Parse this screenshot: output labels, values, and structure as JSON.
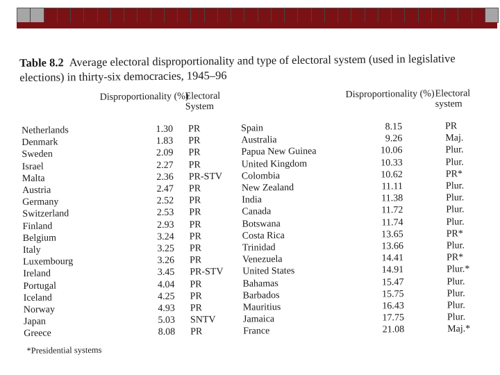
{
  "caption": {
    "table_number": "Table 8.2",
    "text": "Average electoral disproportionality and type of electoral system (used in legislative elections) in thirty-six democracies, 1945–96"
  },
  "headers": {
    "left_disproportionality": "Disproportionality (%)",
    "left_system": "Electoral System",
    "right_disproportionality": "Disproportionality (%)",
    "right_system": "Electoral system"
  },
  "rows": [
    {
      "c1": "Netherlands",
      "v1": "1.30",
      "s1": "PR",
      "c2": "Spain",
      "v2": "8.15",
      "s2": "PR"
    },
    {
      "c1": "Denmark",
      "v1": "1.83",
      "s1": "PR",
      "c2": "Australia",
      "v2": "9.26",
      "s2": "Maj."
    },
    {
      "c1": "Sweden",
      "v1": "2.09",
      "s1": "PR",
      "c2": "Papua New Guinea",
      "v2": "10.06",
      "s2": "Plur."
    },
    {
      "c1": "Israel",
      "v1": "2.27",
      "s1": "PR",
      "c2": "United Kingdom",
      "v2": "10.33",
      "s2": "Plur."
    },
    {
      "c1": "Malta",
      "v1": "2.36",
      "s1": "PR-STV",
      "c2": "Colombia",
      "v2": "10.62",
      "s2": "PR*"
    },
    {
      "c1": "Austria",
      "v1": "2.47",
      "s1": "PR",
      "c2": "New Zealand",
      "v2": "11.11",
      "s2": "Plur."
    },
    {
      "c1": "Germany",
      "v1": "2.52",
      "s1": "PR",
      "c2": "India",
      "v2": "11.38",
      "s2": "Plur."
    },
    {
      "c1": "Switzerland",
      "v1": "2.53",
      "s1": "PR",
      "c2": "Canada",
      "v2": "11.72",
      "s2": "Plur."
    },
    {
      "c1": "Finland",
      "v1": "2.93",
      "s1": "PR",
      "c2": "Botswana",
      "v2": "11.74",
      "s2": "Plur."
    },
    {
      "c1": "Belgium",
      "v1": "3.24",
      "s1": "PR",
      "c2": "Costa Rica",
      "v2": "13.65",
      "s2": "PR*"
    },
    {
      "c1": "Italy",
      "v1": "3.25",
      "s1": "PR",
      "c2": "Trinidad",
      "v2": "13.66",
      "s2": "Plur."
    },
    {
      "c1": "Luxembourg",
      "v1": "3.26",
      "s1": "PR",
      "c2": "Venezuela",
      "v2": "14.41",
      "s2": "PR*"
    },
    {
      "c1": "Ireland",
      "v1": "3.45",
      "s1": "PR-STV",
      "c2": "United States",
      "v2": "14.91",
      "s2": "Plur.*"
    },
    {
      "c1": "Portugal",
      "v1": "4.04",
      "s1": "PR",
      "c2": "Bahamas",
      "v2": "15.47",
      "s2": "Plur."
    },
    {
      "c1": "Iceland",
      "v1": "4.25",
      "s1": "PR",
      "c2": "Barbados",
      "v2": "15.75",
      "s2": "Plur."
    },
    {
      "c1": "Norway",
      "v1": "4.93",
      "s1": "PR",
      "c2": "Mauritius",
      "v2": "16.43",
      "s2": "Plur."
    },
    {
      "c1": "Japan",
      "v1": "5.03",
      "s1": "SNTV",
      "c2": "Jamaica",
      "v2": "17.75",
      "s2": "Plur."
    },
    {
      "c1": "Greece",
      "v1": "8.08",
      "s1": "PR",
      "c2": "France",
      "v2": "21.08",
      "s2": "Maj.*"
    }
  ],
  "footnote": "*Presidential systems"
}
